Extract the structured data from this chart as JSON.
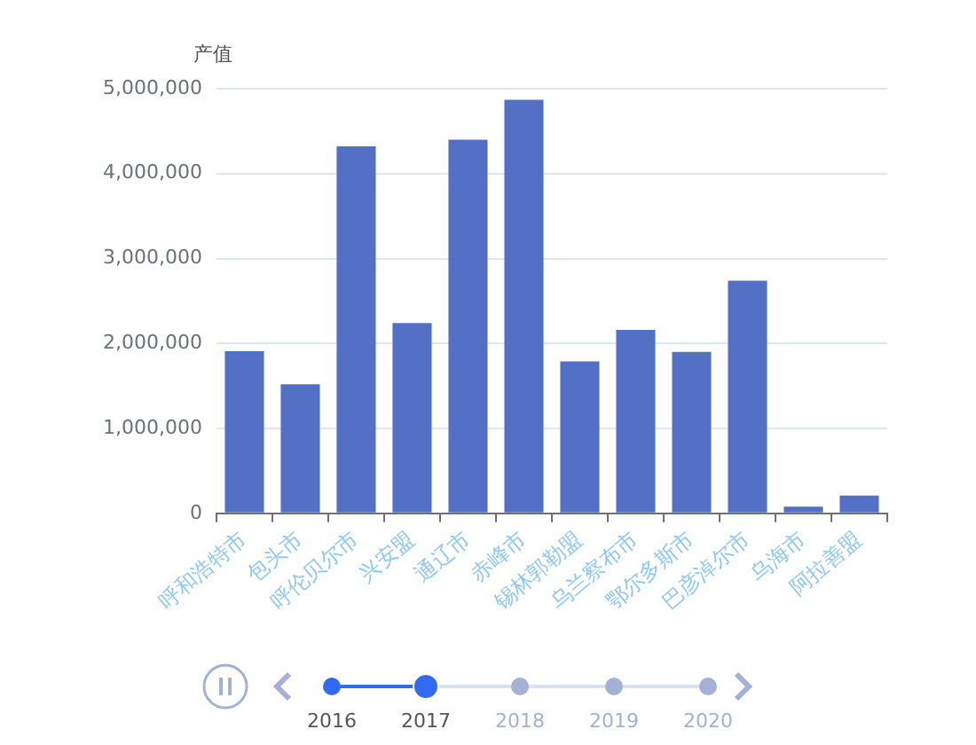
{
  "chart_data": {
    "type": "bar",
    "ylabel": "产值",
    "categories": [
      "呼和浩特市",
      "包头市",
      "呼伦贝尔市",
      "兴安盟",
      "通辽市",
      "赤峰市",
      "锡林郭勒盟",
      "乌兰察布市",
      "鄂尔多斯市",
      "巴彦淖尔市",
      "乌海市",
      "阿拉善盟"
    ],
    "values": [
      1910000,
      1520000,
      4320000,
      2240000,
      4400000,
      4870000,
      1790000,
      2160000,
      1900000,
      2740000,
      80000,
      210000
    ],
    "color": "#5470c6",
    "ylim": [
      0,
      5000000
    ],
    "yticks": [
      0,
      {
        "value": 1000000,
        "label": "1,000,000"
      },
      {
        "value": 2000000,
        "label": "2,000,000"
      },
      {
        "value": 3000000,
        "label": "3,000,000"
      },
      {
        "value": 4000000,
        "label": "4,000,000"
      },
      {
        "value": 5000000,
        "label": "5,000,000"
      }
    ],
    "grid": "y",
    "legend": false,
    "annotations": [
      "2016",
      "2017",
      "2018",
      "2019",
      "2020"
    ]
  }
}
